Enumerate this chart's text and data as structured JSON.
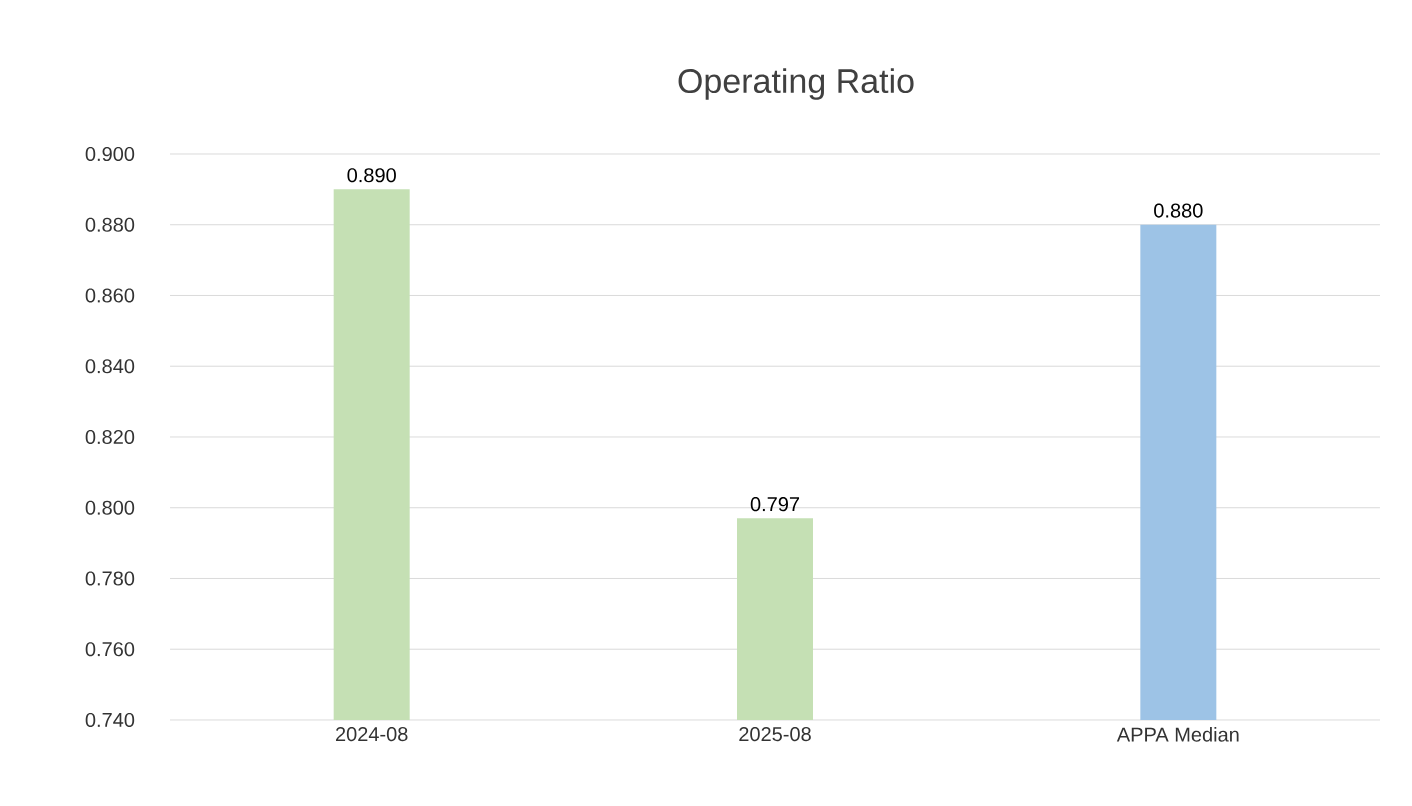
{
  "chart_data": {
    "type": "bar",
    "title": "Operating Ratio",
    "categories": [
      "2024-08",
      "2025-08",
      "APPA Median"
    ],
    "values": [
      0.89,
      0.797,
      0.88
    ],
    "colors": [
      "#c5e0b4",
      "#c5e0b4",
      "#9dc3e6"
    ],
    "value_labels": [
      "0.890",
      "0.797",
      "0.880"
    ],
    "ylim": [
      0.74,
      0.9
    ],
    "yticks": [
      {
        "value": 0.74,
        "label": "0.740"
      },
      {
        "value": 0.76,
        "label": "0.760"
      },
      {
        "value": 0.78,
        "label": "0.780"
      },
      {
        "value": 0.8,
        "label": "0.800"
      },
      {
        "value": 0.82,
        "label": "0.820"
      },
      {
        "value": 0.84,
        "label": "0.840"
      },
      {
        "value": 0.86,
        "label": "0.860"
      },
      {
        "value": 0.88,
        "label": "0.880"
      },
      {
        "value": 0.9,
        "label": "0.900"
      }
    ],
    "grid": "y"
  }
}
